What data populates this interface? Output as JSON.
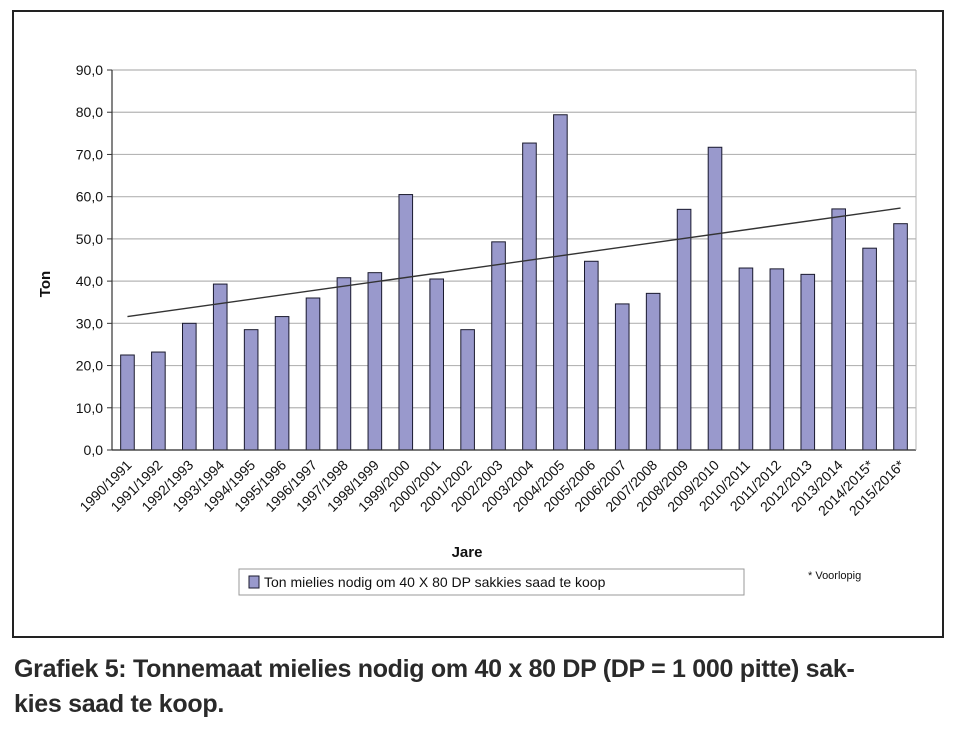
{
  "chart_data": {
    "type": "bar",
    "categories": [
      "1990/1991",
      "1991/1992",
      "1992/1993",
      "1993/1994",
      "1994/1995",
      "1995/1996",
      "1996/1997",
      "1997/1998",
      "1998/1999",
      "1999/2000",
      "2000/2001",
      "2001/2002",
      "2002/2003",
      "2003/2004",
      "2004/2005",
      "2005/2006",
      "2006/2007",
      "2007/2008",
      "2008/2009",
      "2009/2010",
      "2010/2011",
      "2011/2012",
      "2012/2013",
      "2013/2014",
      "2014/2015*",
      "2015/2016*"
    ],
    "series": [
      {
        "name": "Ton mielies nodig om 40 X 80 DP sakkies saad te koop",
        "values": [
          22.5,
          23.2,
          30.0,
          39.3,
          28.5,
          31.6,
          36.0,
          40.8,
          42.0,
          60.5,
          40.5,
          28.5,
          49.3,
          72.7,
          79.4,
          44.7,
          34.6,
          37.1,
          57.0,
          71.7,
          43.1,
          42.9,
          41.6,
          57.1,
          47.8,
          53.6
        ]
      }
    ],
    "trendline": {
      "start": 31.6,
      "end": 57.3
    },
    "xlabel": "Jare",
    "ylabel": "Ton",
    "ylim": [
      0,
      90
    ],
    "yticks": [
      "0,0",
      "10,0",
      "20,0",
      "30,0",
      "40,0",
      "50,0",
      "60,0",
      "70,0",
      "80,0",
      "90,0"
    ],
    "grid": true,
    "legend_position": "bottom",
    "footnote": "* Voorlopig",
    "colors": {
      "bar": "#9999cc",
      "bar_stroke": "#1a1a2e",
      "grid": "#b5b5b5",
      "trend": "#333333"
    }
  },
  "caption": {
    "line1": "Grafiek 5: Tonnemaat mielies nodig om 40 x 80 DP (DP = 1 000 pitte) sak-",
    "line2": "kies saad te koop."
  }
}
